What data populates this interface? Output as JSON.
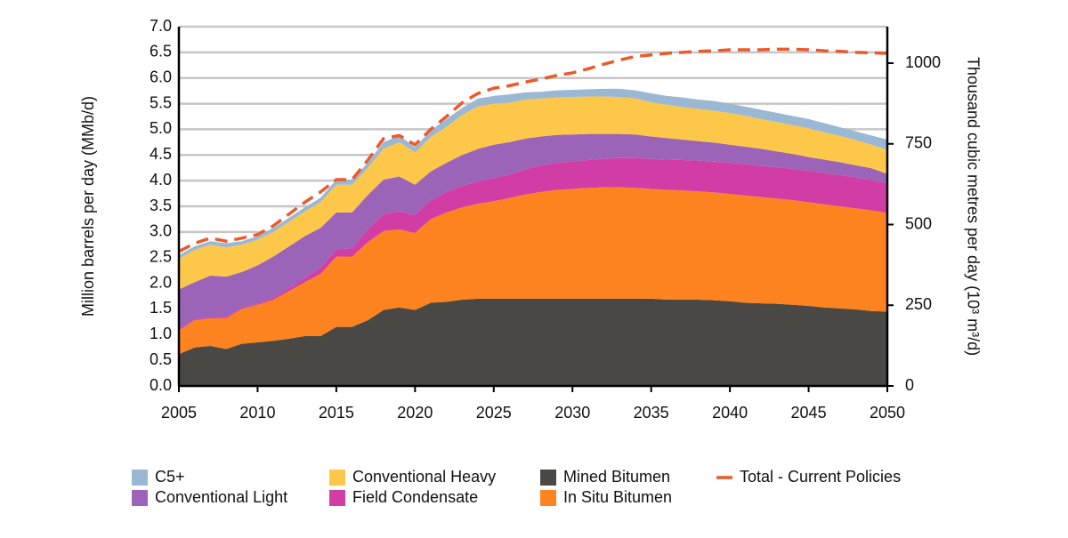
{
  "chart_data": {
    "type": "area",
    "y_label": "Million barrels per day (MMb/d)",
    "y2_label": "Thousand cubic metres per day (10³ m³/d)",
    "x": [
      2005,
      2006,
      2007,
      2008,
      2009,
      2010,
      2011,
      2012,
      2013,
      2014,
      2015,
      2016,
      2017,
      2018,
      2019,
      2020,
      2021,
      2022,
      2023,
      2024,
      2025,
      2026,
      2027,
      2028,
      2029,
      2030,
      2031,
      2032,
      2033,
      2034,
      2035,
      2036,
      2037,
      2038,
      2039,
      2040,
      2041,
      2042,
      2043,
      2044,
      2045,
      2046,
      2047,
      2048,
      2049,
      2050
    ],
    "xlim": [
      2005,
      2050
    ],
    "xticks": [
      2005,
      2010,
      2015,
      2020,
      2025,
      2030,
      2035,
      2040,
      2045,
      2050
    ],
    "ylim": [
      0,
      7
    ],
    "yticks": [
      {
        "value": 0,
        "label": "0.0"
      },
      {
        "value": 0.5,
        "label": "0.5"
      },
      {
        "value": 1,
        "label": "1.0"
      },
      {
        "value": 1.5,
        "label": "1.5"
      },
      {
        "value": 2,
        "label": "2.0"
      },
      {
        "value": 2.5,
        "label": "2.5"
      },
      {
        "value": 3,
        "label": "3.0"
      },
      {
        "value": 3.5,
        "label": "3.5"
      },
      {
        "value": 4,
        "label": "4.0"
      },
      {
        "value": 4.5,
        "label": "4.5"
      },
      {
        "value": 5,
        "label": "5.0"
      },
      {
        "value": 5.5,
        "label": "5.5"
      },
      {
        "value": 6,
        "label": "6.0"
      },
      {
        "value": 6.5,
        "label": "6.5"
      },
      {
        "value": 7,
        "label": "7.0"
      }
    ],
    "y2lim": [
      0,
      1113
    ],
    "y2ticks": [
      0,
      250,
      500,
      750,
      1000
    ],
    "grid": true,
    "stacked": true,
    "legend": "bottom",
    "series": [
      {
        "name": "Mined Bitumen",
        "color": "#4a4844",
        "values": [
          0.62,
          0.75,
          0.78,
          0.72,
          0.82,
          0.85,
          0.88,
          0.92,
          0.97,
          0.97,
          1.15,
          1.15,
          1.28,
          1.48,
          1.53,
          1.48,
          1.62,
          1.64,
          1.68,
          1.7,
          1.7,
          1.7,
          1.7,
          1.7,
          1.7,
          1.7,
          1.7,
          1.7,
          1.7,
          1.7,
          1.7,
          1.68,
          1.68,
          1.68,
          1.67,
          1.65,
          1.62,
          1.61,
          1.6,
          1.58,
          1.56,
          1.53,
          1.51,
          1.49,
          1.46,
          1.45
        ]
      },
      {
        "name": "In Situ Bitumen",
        "color": "#fd8320",
        "values": [
          0.46,
          0.53,
          0.54,
          0.6,
          0.68,
          0.73,
          0.8,
          0.93,
          1.05,
          1.21,
          1.37,
          1.37,
          1.52,
          1.54,
          1.52,
          1.5,
          1.63,
          1.74,
          1.8,
          1.85,
          1.9,
          1.96,
          2.03,
          2.08,
          2.12,
          2.14,
          2.16,
          2.17,
          2.17,
          2.16,
          2.14,
          2.14,
          2.13,
          2.11,
          2.1,
          2.09,
          2.09,
          2.07,
          2.05,
          2.04,
          2.02,
          2.01,
          1.99,
          1.97,
          1.96,
          1.92
        ]
      },
      {
        "name": "Field Condensate",
        "color": "#d23ca5",
        "values": [
          0.02,
          0.02,
          0.02,
          0.03,
          0.02,
          0.02,
          0.04,
          0.05,
          0.08,
          0.12,
          0.14,
          0.16,
          0.25,
          0.33,
          0.35,
          0.35,
          0.37,
          0.4,
          0.42,
          0.43,
          0.45,
          0.46,
          0.49,
          0.52,
          0.53,
          0.53,
          0.54,
          0.56,
          0.57,
          0.58,
          0.58,
          0.59,
          0.59,
          0.6,
          0.6,
          0.61,
          0.61,
          0.61,
          0.61,
          0.61,
          0.61,
          0.61,
          0.61,
          0.6,
          0.59,
          0.58
        ]
      },
      {
        "name": "Conventional Light",
        "color": "#9b64b8",
        "values": [
          0.78,
          0.72,
          0.81,
          0.78,
          0.7,
          0.75,
          0.8,
          0.82,
          0.82,
          0.78,
          0.72,
          0.7,
          0.67,
          0.67,
          0.68,
          0.59,
          0.56,
          0.57,
          0.6,
          0.64,
          0.65,
          0.63,
          0.6,
          0.56,
          0.54,
          0.53,
          0.51,
          0.48,
          0.47,
          0.46,
          0.44,
          0.42,
          0.4,
          0.38,
          0.37,
          0.35,
          0.34,
          0.33,
          0.31,
          0.29,
          0.27,
          0.26,
          0.25,
          0.24,
          0.23,
          0.18
        ]
      },
      {
        "name": "Conventional Heavy",
        "color": "#fdc84a",
        "values": [
          0.6,
          0.63,
          0.6,
          0.57,
          0.53,
          0.5,
          0.48,
          0.48,
          0.48,
          0.5,
          0.54,
          0.54,
          0.53,
          0.6,
          0.67,
          0.63,
          0.67,
          0.7,
          0.78,
          0.83,
          0.8,
          0.77,
          0.76,
          0.74,
          0.73,
          0.73,
          0.73,
          0.73,
          0.72,
          0.7,
          0.67,
          0.65,
          0.63,
          0.63,
          0.62,
          0.62,
          0.6,
          0.58,
          0.57,
          0.56,
          0.56,
          0.53,
          0.51,
          0.49,
          0.46,
          0.47
        ]
      },
      {
        "name": "C5+",
        "color": "#9ab8d3",
        "values": [
          0.07,
          0.07,
          0.07,
          0.08,
          0.07,
          0.07,
          0.08,
          0.08,
          0.08,
          0.09,
          0.1,
          0.1,
          0.1,
          0.13,
          0.13,
          0.1,
          0.13,
          0.15,
          0.14,
          0.15,
          0.15,
          0.16,
          0.14,
          0.13,
          0.14,
          0.14,
          0.14,
          0.15,
          0.16,
          0.16,
          0.17,
          0.17,
          0.19,
          0.18,
          0.19,
          0.18,
          0.18,
          0.18,
          0.18,
          0.18,
          0.18,
          0.18,
          0.17,
          0.17,
          0.18,
          0.2
        ]
      },
      {
        "name": "Total - Current Policies",
        "color": "#ec5a2c",
        "line": "dashed",
        "values": [
          2.62,
          2.78,
          2.88,
          2.82,
          2.88,
          2.95,
          3.12,
          3.35,
          3.58,
          3.78,
          4.02,
          4.02,
          4.4,
          4.82,
          4.88,
          4.7,
          5.0,
          5.25,
          5.52,
          5.7,
          5.8,
          5.85,
          5.92,
          5.98,
          6.05,
          6.1,
          6.18,
          6.27,
          6.35,
          6.42,
          6.45,
          6.48,
          6.5,
          6.52,
          6.53,
          6.55,
          6.55,
          6.55,
          6.56,
          6.56,
          6.55,
          6.53,
          6.52,
          6.5,
          6.49,
          6.48
        ]
      }
    ]
  }
}
